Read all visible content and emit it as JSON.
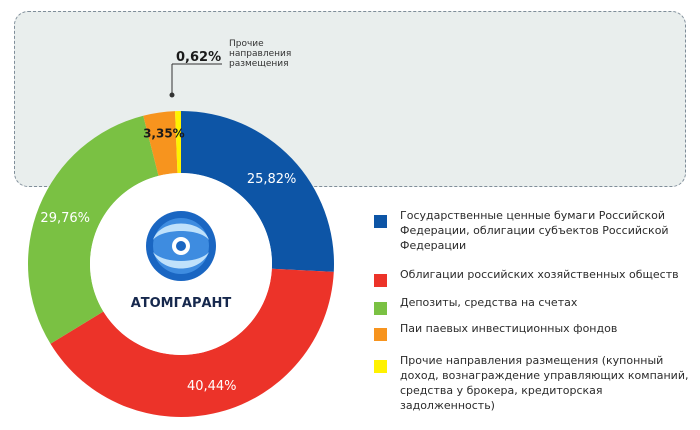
{
  "chart_data": {
    "type": "pie",
    "donut": true,
    "slices": [
      {
        "value_label": "25,82%",
        "value": 25.82,
        "color": "#0d55a6",
        "legend": "Государственные ценные бумаги Российской Федерации, облигации субъектов Российской Федерации"
      },
      {
        "value_label": "40,44%",
        "value": 40.44,
        "color": "#ec3329",
        "legend": "Облигации российских хозяйственных обществ"
      },
      {
        "value_label": "29,76%",
        "value": 29.76,
        "color": "#7ac143",
        "legend": "Депозиты, средства на счетах"
      },
      {
        "value_label": "3,35%",
        "value": 3.35,
        "color": "#f7941e",
        "legend": "Паи паевых инвестиционных фондов"
      },
      {
        "value_label": "0,62%",
        "value": 0.62,
        "color": "#fff200",
        "legend": "Прочие направления размещения (купонный доход, вознаграждение управляющих компаний, средства у брокера, кредиторская задолженность)"
      }
    ],
    "callout": "Прочие направления размещения"
  },
  "logo": {
    "text": "АТОМГАРАНТ",
    "icon": "atomgarant-logo-icon"
  },
  "colors": {
    "panel_bg": "#e9eeed",
    "panel_border": "#7f8d99",
    "label_text": "#ffffff",
    "dark_text": "#1a1a1a"
  }
}
